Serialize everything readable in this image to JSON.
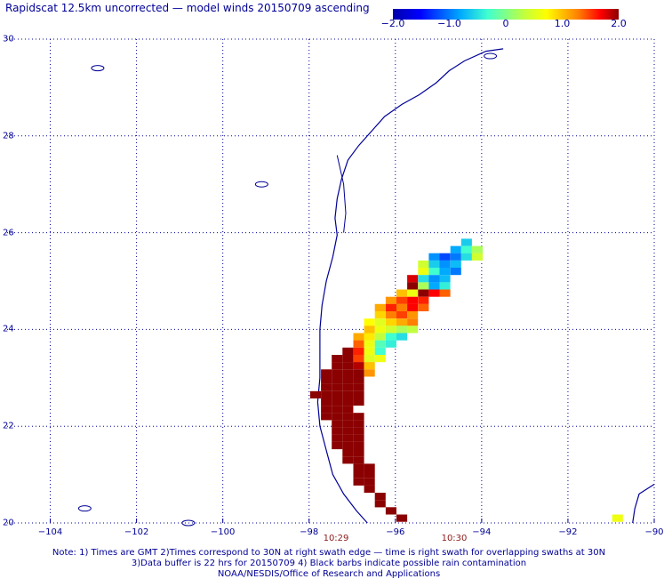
{
  "title": "Rapidscat 12.5km uncorrected — model winds 20150709 ascending",
  "colorbar": {
    "ticks": [
      "−2.0",
      "−1.0",
      "0",
      "1.0",
      "2.0"
    ],
    "range": [
      -2.0,
      2.0
    ]
  },
  "axes": {
    "y_ticks": [
      "30",
      "28",
      "26",
      "24",
      "22",
      "20"
    ],
    "x_ticks": [
      "−104",
      "−102",
      "−100",
      "−98",
      "−96",
      "−94",
      "−92",
      "−90"
    ]
  },
  "times": [
    "10:29",
    "10:30"
  ],
  "notes": [
    "Note: 1) Times are GMT 2)Times correspond to 30N at right swath edge — time is right swath for overlapping swaths at 30N",
    "3)Data buffer is 22 hrs for 20150709 4) Black barbs indicate possible rain contamination",
    "NOAA/NESDIS/Office of Research and Applications"
  ],
  "colors": {
    "axis": "#000096",
    "coast": "#000096",
    "time": "#8b1a1a"
  },
  "chart_data": {
    "type": "heatmap",
    "title": "Rapidscat 12.5km uncorrected — model winds 20150709 ascending",
    "xlim": [
      -105,
      -90
    ],
    "ylim": [
      20,
      30
    ],
    "zlim": [
      -2.0,
      2.0
    ],
    "grid": true,
    "cell_size_deg": 0.125,
    "cells": [
      {
        "lon": -94.35,
        "lat": 25.8,
        "value": -0.6
      },
      {
        "lon": -94.6,
        "lat": 25.65,
        "value": -0.8
      },
      {
        "lon": -94.35,
        "lat": 25.65,
        "value": -0.3
      },
      {
        "lon": -94.1,
        "lat": 25.65,
        "value": 0.2
      },
      {
        "lon": -95.1,
        "lat": 25.5,
        "value": -0.9
      },
      {
        "lon": -94.85,
        "lat": 25.5,
        "value": -1.2
      },
      {
        "lon": -94.6,
        "lat": 25.5,
        "value": -1.0
      },
      {
        "lon": -94.35,
        "lat": 25.5,
        "value": -0.5
      },
      {
        "lon": -94.1,
        "lat": 25.5,
        "value": 0.4
      },
      {
        "lon": -95.35,
        "lat": 25.35,
        "value": 0.4
      },
      {
        "lon": -95.1,
        "lat": 25.35,
        "value": -0.6
      },
      {
        "lon": -94.85,
        "lat": 25.35,
        "value": -0.9
      },
      {
        "lon": -94.6,
        "lat": 25.35,
        "value": -0.7
      },
      {
        "lon": -95.35,
        "lat": 25.2,
        "value": 0.6
      },
      {
        "lon": -95.1,
        "lat": 25.2,
        "value": -0.3
      },
      {
        "lon": -94.85,
        "lat": 25.2,
        "value": -0.8
      },
      {
        "lon": -94.6,
        "lat": 25.2,
        "value": -1.0
      },
      {
        "lon": -95.6,
        "lat": 25.05,
        "value": 1.8
      },
      {
        "lon": -95.35,
        "lat": 25.05,
        "value": -0.5
      },
      {
        "lon": -95.1,
        "lat": 25.05,
        "value": -0.9
      },
      {
        "lon": -94.85,
        "lat": 25.05,
        "value": -0.7
      },
      {
        "lon": -95.6,
        "lat": 24.9,
        "value": 2.2
      },
      {
        "lon": -95.35,
        "lat": 24.9,
        "value": 0.2
      },
      {
        "lon": -95.1,
        "lat": 24.9,
        "value": -0.8
      },
      {
        "lon": -94.85,
        "lat": 24.9,
        "value": -0.4
      },
      {
        "lon": -95.85,
        "lat": 24.75,
        "value": 1.0
      },
      {
        "lon": -95.6,
        "lat": 24.75,
        "value": 0.6
      },
      {
        "lon": -95.35,
        "lat": 24.75,
        "value": 2.3
      },
      {
        "lon": -95.1,
        "lat": 24.75,
        "value": 1.7
      },
      {
        "lon": -94.85,
        "lat": 24.75,
        "value": 1.4
      },
      {
        "lon": -96.1,
        "lat": 24.6,
        "value": 1.2
      },
      {
        "lon": -95.85,
        "lat": 24.6,
        "value": 1.5
      },
      {
        "lon": -95.6,
        "lat": 24.6,
        "value": 1.7
      },
      {
        "lon": -95.35,
        "lat": 24.6,
        "value": 1.6
      },
      {
        "lon": -96.35,
        "lat": 24.45,
        "value": 1.1
      },
      {
        "lon": -96.1,
        "lat": 24.45,
        "value": 1.6
      },
      {
        "lon": -95.85,
        "lat": 24.45,
        "value": 1.3
      },
      {
        "lon": -95.6,
        "lat": 24.45,
        "value": 1.7
      },
      {
        "lon": -95.35,
        "lat": 24.45,
        "value": 1.4
      },
      {
        "lon": -96.35,
        "lat": 24.3,
        "value": 0.9
      },
      {
        "lon": -96.1,
        "lat": 24.3,
        "value": 1.3
      },
      {
        "lon": -95.85,
        "lat": 24.3,
        "value": 1.5
      },
      {
        "lon": -95.6,
        "lat": 24.3,
        "value": 1.2
      },
      {
        "lon": -96.6,
        "lat": 24.15,
        "value": 0.7
      },
      {
        "lon": -96.35,
        "lat": 24.15,
        "value": 0.5
      },
      {
        "lon": -96.1,
        "lat": 24.15,
        "value": 0.9
      },
      {
        "lon": -95.85,
        "lat": 24.15,
        "value": 1.1
      },
      {
        "lon": -95.6,
        "lat": 24.15,
        "value": 1.3
      },
      {
        "lon": -96.6,
        "lat": 24.0,
        "value": 1.0
      },
      {
        "lon": -96.35,
        "lat": 24.0,
        "value": 0.6
      },
      {
        "lon": -96.1,
        "lat": 24.0,
        "value": 0.4
      },
      {
        "lon": -95.85,
        "lat": 24.0,
        "value": 0.2
      },
      {
        "lon": -95.6,
        "lat": 24.0,
        "value": 0.3
      },
      {
        "lon": -96.85,
        "lat": 23.85,
        "value": 1.1
      },
      {
        "lon": -96.6,
        "lat": 23.85,
        "value": 0.8
      },
      {
        "lon": -96.35,
        "lat": 23.85,
        "value": 0.3
      },
      {
        "lon": -96.1,
        "lat": 23.85,
        "value": -0.3
      },
      {
        "lon": -95.85,
        "lat": 23.85,
        "value": -0.5
      },
      {
        "lon": -96.85,
        "lat": 23.7,
        "value": 1.4
      },
      {
        "lon": -96.6,
        "lat": 23.7,
        "value": 0.6
      },
      {
        "lon": -96.35,
        "lat": 23.7,
        "value": -0.2
      },
      {
        "lon": -96.1,
        "lat": 23.7,
        "value": -0.4
      },
      {
        "lon": -97.1,
        "lat": 23.55,
        "value": 2.4
      },
      {
        "lon": -96.85,
        "lat": 23.55,
        "value": 1.6
      },
      {
        "lon": -96.6,
        "lat": 23.55,
        "value": 0.6
      },
      {
        "lon": -96.35,
        "lat": 23.55,
        "value": -0.3
      },
      {
        "lon": -97.35,
        "lat": 23.4,
        "value": 2.6
      },
      {
        "lon": -97.1,
        "lat": 23.4,
        "value": 2.2
      },
      {
        "lon": -96.85,
        "lat": 23.4,
        "value": 1.5
      },
      {
        "lon": -96.6,
        "lat": 23.4,
        "value": 0.5
      },
      {
        "lon": -96.35,
        "lat": 23.4,
        "value": 0.6
      },
      {
        "lon": -97.35,
        "lat": 23.25,
        "value": 2.5
      },
      {
        "lon": -97.1,
        "lat": 23.25,
        "value": 2.4
      },
      {
        "lon": -96.85,
        "lat": 23.25,
        "value": 1.9
      },
      {
        "lon": -96.6,
        "lat": 23.25,
        "value": 1.0
      },
      {
        "lon": -97.6,
        "lat": 23.1,
        "value": 2.5
      },
      {
        "lon": -97.35,
        "lat": 23.1,
        "value": 2.6
      },
      {
        "lon": -97.1,
        "lat": 23.1,
        "value": 2.5
      },
      {
        "lon": -96.85,
        "lat": 23.1,
        "value": 2.4
      },
      {
        "lon": -96.6,
        "lat": 23.1,
        "value": 1.2
      },
      {
        "lon": -97.6,
        "lat": 22.95,
        "value": 2.6
      },
      {
        "lon": -97.35,
        "lat": 22.95,
        "value": 2.5
      },
      {
        "lon": -97.1,
        "lat": 22.95,
        "value": 2.6
      },
      {
        "lon": -96.85,
        "lat": 22.95,
        "value": 2.3
      },
      {
        "lon": -97.6,
        "lat": 22.8,
        "value": 2.5
      },
      {
        "lon": -97.35,
        "lat": 22.8,
        "value": 2.6
      },
      {
        "lon": -97.1,
        "lat": 22.8,
        "value": 2.5
      },
      {
        "lon": -96.85,
        "lat": 22.8,
        "value": 2.4
      },
      {
        "lon": -97.85,
        "lat": 22.65,
        "value": 2.5
      },
      {
        "lon": -97.6,
        "lat": 22.65,
        "value": 2.6
      },
      {
        "lon": -97.35,
        "lat": 22.65,
        "value": 2.5
      },
      {
        "lon": -97.1,
        "lat": 22.65,
        "value": 2.5
      },
      {
        "lon": -96.85,
        "lat": 22.65,
        "value": 2.4
      },
      {
        "lon": -97.6,
        "lat": 22.5,
        "value": 2.6
      },
      {
        "lon": -97.35,
        "lat": 22.5,
        "value": 2.5
      },
      {
        "lon": -97.1,
        "lat": 22.5,
        "value": 2.4
      },
      {
        "lon": -96.85,
        "lat": 22.5,
        "value": 2.0
      },
      {
        "lon": -97.6,
        "lat": 22.35,
        "value": 2.5
      },
      {
        "lon": -97.35,
        "lat": 22.35,
        "value": 2.6
      },
      {
        "lon": -97.1,
        "lat": 22.35,
        "value": 2.5
      },
      {
        "lon": -97.6,
        "lat": 22.2,
        "value": 2.6
      },
      {
        "lon": -97.35,
        "lat": 22.2,
        "value": 2.5
      },
      {
        "lon": -97.1,
        "lat": 22.2,
        "value": 2.6
      },
      {
        "lon": -96.85,
        "lat": 22.2,
        "value": 2.5
      },
      {
        "lon": -97.35,
        "lat": 22.05,
        "value": 2.5
      },
      {
        "lon": -97.1,
        "lat": 22.05,
        "value": 2.6
      },
      {
        "lon": -96.85,
        "lat": 22.05,
        "value": 2.5
      },
      {
        "lon": -97.35,
        "lat": 21.9,
        "value": 2.6
      },
      {
        "lon": -97.1,
        "lat": 21.9,
        "value": 2.5
      },
      {
        "lon": -96.85,
        "lat": 21.9,
        "value": 2.6
      },
      {
        "lon": -97.35,
        "lat": 21.75,
        "value": 2.5
      },
      {
        "lon": -97.1,
        "lat": 21.75,
        "value": 2.6
      },
      {
        "lon": -96.85,
        "lat": 21.75,
        "value": 2.5
      },
      {
        "lon": -97.35,
        "lat": 21.6,
        "value": 2.6
      },
      {
        "lon": -97.1,
        "lat": 21.6,
        "value": 2.5
      },
      {
        "lon": -96.85,
        "lat": 21.6,
        "value": 2.6
      },
      {
        "lon": -97.1,
        "lat": 21.45,
        "value": 2.5
      },
      {
        "lon": -96.85,
        "lat": 21.45,
        "value": 2.6
      },
      {
        "lon": -97.1,
        "lat": 21.3,
        "value": 2.6
      },
      {
        "lon": -96.85,
        "lat": 21.3,
        "value": 2.5
      },
      {
        "lon": -96.85,
        "lat": 21.15,
        "value": 2.5
      },
      {
        "lon": -96.6,
        "lat": 21.15,
        "value": 2.6
      },
      {
        "lon": -96.85,
        "lat": 21.0,
        "value": 2.6
      },
      {
        "lon": -96.6,
        "lat": 21.0,
        "value": 2.5
      },
      {
        "lon": -96.85,
        "lat": 20.85,
        "value": 2.5
      },
      {
        "lon": -96.6,
        "lat": 20.85,
        "value": 2.6
      },
      {
        "lon": -96.6,
        "lat": 20.7,
        "value": 2.5
      },
      {
        "lon": -96.35,
        "lat": 20.55,
        "value": 2.6
      },
      {
        "lon": -96.35,
        "lat": 20.4,
        "value": 2.5
      },
      {
        "lon": -96.1,
        "lat": 20.25,
        "value": 2.6
      },
      {
        "lon": -95.85,
        "lat": 20.1,
        "value": 2.5
      },
      {
        "lon": -90.85,
        "lat": 20.1,
        "value": 0.6
      }
    ]
  }
}
